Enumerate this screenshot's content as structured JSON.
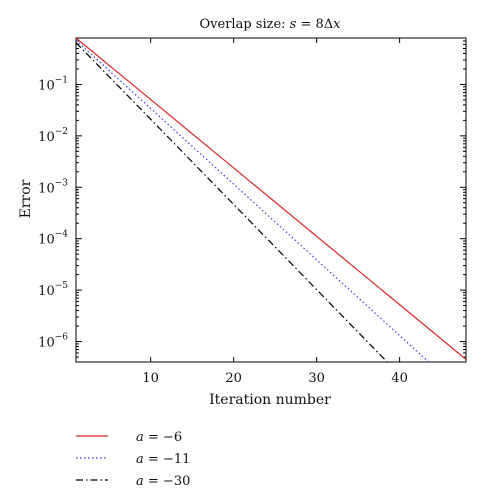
{
  "chart_data": {
    "type": "line",
    "title_prefix": "Overlap size: ",
    "title_var": "s",
    "title_eq": " = 8Δ",
    "title_var2": "x",
    "xlabel": "Iteration number",
    "ylabel": "Error",
    "xlim": [
      1,
      48
    ],
    "ylim": [
      4e-07,
      0.8
    ],
    "yscale": "log",
    "xticks": [
      "10",
      "20",
      "30",
      "40"
    ],
    "xtick_values": [
      10,
      20,
      30,
      40
    ],
    "yticks": [
      {
        "base": "10",
        "exp": "−1",
        "value": 0.1
      },
      {
        "base": "10",
        "exp": "−2",
        "value": 0.01
      },
      {
        "base": "10",
        "exp": "−3",
        "value": 0.001
      },
      {
        "base": "10",
        "exp": "−4",
        "value": 0.0001
      },
      {
        "base": "10",
        "exp": "−5",
        "value": 1e-05
      },
      {
        "base": "10",
        "exp": "−6",
        "value": 1e-06
      }
    ],
    "grid": false,
    "legend_position": "below",
    "series": [
      {
        "name": "a = −6",
        "var": "a",
        "rest": " = −6",
        "color": "#d62728",
        "style": "solid",
        "x": [
          1,
          48
        ],
        "y": [
          0.8,
          4.5e-07
        ]
      },
      {
        "name": "a = −11",
        "var": "a",
        "rest": " = −11",
        "color": "#3b3bdc",
        "style": "dotted",
        "x": [
          1,
          43.5
        ],
        "y": [
          0.72,
          4e-07
        ]
      },
      {
        "name": "a = −30",
        "var": "a",
        "rest": " = −30",
        "color": "#000000",
        "style": "dashdot",
        "x": [
          1,
          38.5
        ],
        "y": [
          0.65,
          4e-07
        ]
      }
    ]
  }
}
